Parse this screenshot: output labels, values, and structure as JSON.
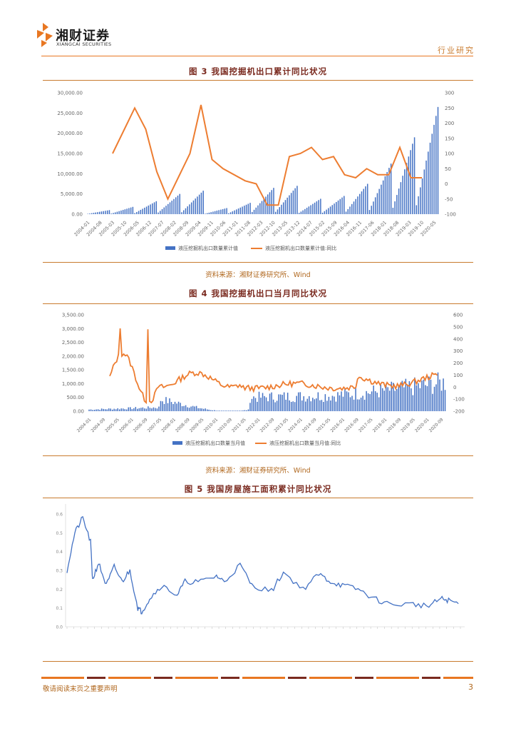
{
  "header": {
    "logo_cn": "湘财证券",
    "logo_en": "XIANGCAI SECURITIES",
    "section": "行业研究",
    "colors": {
      "accent": "#E87722",
      "dark": "#7A2A1F"
    }
  },
  "figures": [
    {
      "title": "图 3  我国挖掘机出口累计同比状况",
      "source": "资料来源：湘财证券研究所、Wind"
    },
    {
      "title": "图 4  我国挖掘机出口当月同比状况",
      "source": "资料来源：湘财证券研究所、Wind"
    },
    {
      "title": "图 5  我国房屋施工面积累计同比状况"
    }
  ],
  "chart_data": [
    {
      "type": "bar+line",
      "left_axis_ticks": [
        "30,000.00",
        "25,000.00",
        "20,000.00",
        "15,000.00",
        "10,000.00",
        "5,000.00",
        "0.00"
      ],
      "right_axis_ticks": [
        "300",
        "250",
        "200",
        "150",
        "100",
        "50",
        "0",
        "-50",
        "-100"
      ],
      "ylim_left": [
        0,
        30000
      ],
      "ylim_right": [
        -100,
        300
      ],
      "x_ticks": [
        "2004-01",
        "2004-08",
        "2005-03",
        "2005-10",
        "2006-05",
        "2006-12",
        "2007-07",
        "2008-02",
        "2008-09",
        "2009-04",
        "2009-11",
        "2010-06",
        "2011-01",
        "2011-08",
        "2012-03",
        "2012-10",
        "2013-05",
        "2013-12",
        "2014-07",
        "2015-02",
        "2015-09",
        "2016-04",
        "2016-11",
        "2017-06",
        "2018-01",
        "2018-08",
        "2019-03",
        "2019-10",
        "2020-05"
      ],
      "legend": [
        "液压挖掘机出口数量累计值",
        "液压挖掘机出口数量累计值:同比"
      ],
      "series": [
        {
          "name": "液压挖掘机出口数量累计值",
          "kind": "bar",
          "color": "#4472C4",
          "yearly_peaks": [
            1000,
            1800,
            3200,
            5000,
            5800,
            1500,
            2800,
            6500,
            7000,
            3800,
            4500,
            7500,
            12500,
            19000,
            26500
          ]
        },
        {
          "name": "液压挖掘机出口数量累计值:同比",
          "kind": "line",
          "color": "#ED7D31",
          "x_index": [
            0,
            2,
            3,
            4,
            5,
            7,
            8,
            9,
            10,
            12,
            13,
            14,
            15,
            16,
            17,
            18,
            19,
            20,
            21,
            22,
            23,
            24,
            25,
            26,
            27,
            28
          ],
          "values": [
            100,
            250,
            180,
            40,
            -50,
            100,
            260,
            80,
            50,
            10,
            0,
            -70,
            -70,
            90,
            100,
            120,
            80,
            90,
            30,
            20,
            50,
            30,
            30,
            120,
            20,
            20
          ]
        }
      ]
    },
    {
      "type": "bar+line",
      "left_axis_ticks": [
        "3,500.00",
        "3,000.00",
        "2,500.00",
        "2,000.00",
        "1,500.00",
        "1,000.00",
        "500.00",
        "0.00"
      ],
      "right_axis_ticks": [
        "600",
        "500",
        "400",
        "300",
        "200",
        "100",
        "0",
        "-100",
        "-200"
      ],
      "ylim_left": [
        0,
        3500
      ],
      "ylim_right": [
        -200,
        600
      ],
      "x_ticks": [
        "2004-01",
        "2004-09",
        "2005-05",
        "2006-01",
        "2006-09",
        "2007-05",
        "2008-01",
        "2008-09",
        "2009-05",
        "2010-01",
        "2010-09",
        "2011-05",
        "2012-01",
        "2012-09",
        "2013-05",
        "2014-01",
        "2014-09",
        "2015-05",
        "2016-01",
        "2016-09",
        "2017-05",
        "2018-01",
        "2018-09",
        "2019-05",
        "2020-01",
        "2020-09"
      ],
      "legend": [
        "液压挖掘机出口数量当月值",
        "液压挖掘机出口数量当月值:同比"
      ],
      "series": [
        {
          "name": "液压挖掘机出口数量当月值",
          "kind": "bar",
          "color": "#4472C4"
        },
        {
          "name": "液压挖掘机出口数量当月值:同比",
          "kind": "line",
          "color": "#ED7D31"
        }
      ]
    },
    {
      "type": "line",
      "y_ticks": [
        "0.6",
        "0.5",
        "0.4",
        "0.3",
        "0.2",
        "0.1",
        "0.0"
      ],
      "ylim": [
        0,
        0.6
      ],
      "series": [
        {
          "kind": "line",
          "color": "#4472C4"
        }
      ]
    }
  ],
  "footer": {
    "note": "敬请阅读末页之重要声明",
    "page": "3"
  }
}
